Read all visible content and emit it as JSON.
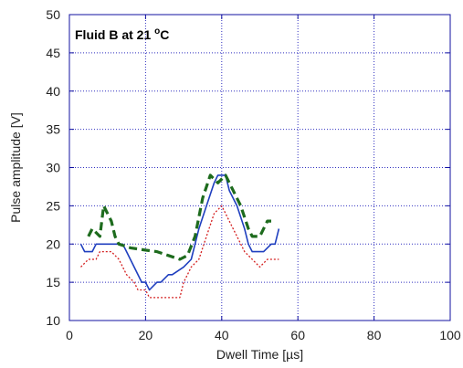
{
  "chart_data": {
    "type": "line",
    "annotation": {
      "text": "Fluid B at 21 ",
      "sup": "o",
      "suffix": "C"
    },
    "xlabel": "Dwell Time [µs]",
    "ylabel": "Pulse amplitude [V]",
    "xlim": [
      0,
      100
    ],
    "ylim": [
      10,
      50
    ],
    "xticks": [
      0,
      20,
      40,
      60,
      80,
      100
    ],
    "yticks": [
      10,
      15,
      20,
      25,
      30,
      35,
      40,
      45,
      50
    ],
    "grid": true,
    "series": [
      {
        "color": "#1f3fbf",
        "style": "solid",
        "x": [
          3,
          4,
          6,
          7,
          14,
          15,
          17,
          19,
          20,
          21,
          23,
          24,
          26,
          27,
          30,
          32,
          33,
          34,
          36,
          38,
          39,
          41,
          42,
          44,
          46,
          47,
          48,
          50,
          51,
          53,
          54,
          55
        ],
        "y": [
          20,
          19,
          19,
          20,
          20,
          19,
          17,
          15,
          15,
          14,
          15,
          15,
          16,
          16,
          17,
          18,
          20,
          22,
          25,
          28,
          29,
          29,
          27,
          25,
          22,
          20,
          19,
          19,
          19,
          20,
          20,
          22
        ]
      },
      {
        "color": "#d42020",
        "style": "dotted",
        "x": [
          3,
          5,
          7,
          8,
          11,
          13,
          15,
          17,
          18,
          20,
          21,
          23,
          27,
          29,
          30,
          31,
          32,
          34,
          36,
          38,
          40,
          42,
          44,
          46,
          48,
          50,
          52,
          54,
          55
        ],
        "y": [
          17,
          18,
          18,
          19,
          19,
          18,
          16,
          15,
          14,
          14,
          13,
          13,
          13,
          13,
          15,
          16,
          17,
          18,
          21,
          24,
          25,
          23,
          21,
          19,
          18,
          17,
          18,
          18,
          18
        ]
      },
      {
        "color": "#1d6b1d",
        "style": "dashed",
        "x": [
          5,
          6,
          8,
          9,
          11,
          12,
          13,
          16,
          20,
          23,
          26,
          29,
          31,
          33,
          35,
          37,
          39,
          41,
          43,
          45,
          47,
          48,
          49,
          50,
          52,
          53
        ],
        "y": [
          21,
          22,
          21,
          25,
          23,
          21,
          20,
          19.5,
          19.2,
          19,
          18.5,
          18,
          18.5,
          21,
          26,
          29,
          28,
          29,
          27,
          25,
          22,
          21,
          21,
          21,
          23,
          23
        ]
      }
    ]
  }
}
